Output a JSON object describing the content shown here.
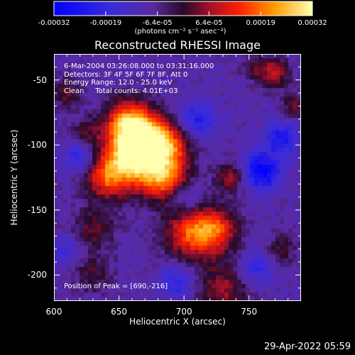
{
  "title": "Reconstructed RHESSI Image",
  "colorbar": {
    "ticks": [
      "-0.00032",
      "-0.00019",
      "-6.4e-05",
      "6.4e-05",
      "0.00019",
      "0.00032"
    ],
    "unit": "(photons cm⁻² s⁻¹ asec⁻²)"
  },
  "annotations": {
    "time": "6-Mar-2004 03:26:08.000 to 03:31:16.000",
    "detectors": "Detectors: 3F 4F 5F 6F 7F 8F, Att 0",
    "energy": "Energy Range: 12.0 - 25.0 keV",
    "clean": "Clean     Total counts: 4.01E+03",
    "peak": "Position of Peak = [690,-216]"
  },
  "footer": "29-Apr-2022 05:59",
  "chart_data": {
    "type": "heatmap",
    "title": "Reconstructed RHESSI Image",
    "xlabel": "Heliocentric X (arcsec)",
    "ylabel": "Heliocentric Y (arcsec)",
    "xlim": [
      600,
      790
    ],
    "ylim": [
      -220,
      -30
    ],
    "xticks": [
      "600",
      "650",
      "700",
      "750"
    ],
    "yticks": [
      "-50",
      "-100",
      "-150",
      "-200"
    ],
    "xtick_values": [
      600,
      650,
      700,
      750
    ],
    "ytick_values": [
      -50,
      -100,
      -150,
      -200
    ],
    "colorbar_range": [
      -0.00032,
      0.00032
    ],
    "peak": [
      690,
      -216
    ],
    "blobs": [
      {
        "x": 668,
        "y": -95,
        "amp": 1.15,
        "r": 14
      },
      {
        "x": 660,
        "y": -110,
        "amp": 0.9,
        "r": 16
      },
      {
        "x": 685,
        "y": -125,
        "amp": 0.85,
        "r": 13
      },
      {
        "x": 640,
        "y": -125,
        "amp": 0.65,
        "r": 12
      },
      {
        "x": 655,
        "y": -80,
        "amp": 0.6,
        "r": 12
      },
      {
        "x": 690,
        "y": -100,
        "amp": 0.55,
        "r": 11
      },
      {
        "x": 705,
        "y": -168,
        "amp": 0.75,
        "r": 14
      },
      {
        "x": 725,
        "y": -165,
        "amp": 0.65,
        "r": 12
      },
      {
        "x": 730,
        "y": -210,
        "amp": 0.45,
        "r": 14
      },
      {
        "x": 630,
        "y": -165,
        "amp": 0.35,
        "r": 12
      },
      {
        "x": 770,
        "y": -45,
        "amp": 0.5,
        "r": 8
      },
      {
        "x": 755,
        "y": -40,
        "amp": 0.3,
        "r": 7
      },
      {
        "x": 735,
        "y": -125,
        "amp": 0.45,
        "r": 8
      },
      {
        "x": 610,
        "y": -60,
        "amp": 0.35,
        "r": 8
      },
      {
        "x": 625,
        "y": -90,
        "amp": 0.3,
        "r": 8
      },
      {
        "x": 630,
        "y": -200,
        "amp": 0.3,
        "r": 10
      },
      {
        "x": 775,
        "y": -180,
        "amp": 0.3,
        "r": 8
      },
      {
        "x": 785,
        "y": -70,
        "amp": 0.35,
        "r": 7
      },
      {
        "x": 760,
        "y": -120,
        "amp": -0.7,
        "r": 10
      },
      {
        "x": 710,
        "y": -80,
        "amp": -0.45,
        "r": 10
      },
      {
        "x": 775,
        "y": -95,
        "amp": -0.5,
        "r": 9
      },
      {
        "x": 620,
        "y": -110,
        "amp": -0.4,
        "r": 9
      },
      {
        "x": 700,
        "y": -140,
        "amp": -0.35,
        "r": 9
      },
      {
        "x": 695,
        "y": -205,
        "amp": -0.4,
        "r": 9
      },
      {
        "x": 755,
        "y": -195,
        "amp": -0.35,
        "r": 9
      },
      {
        "x": 610,
        "y": -180,
        "amp": -0.3,
        "r": 8
      }
    ]
  }
}
